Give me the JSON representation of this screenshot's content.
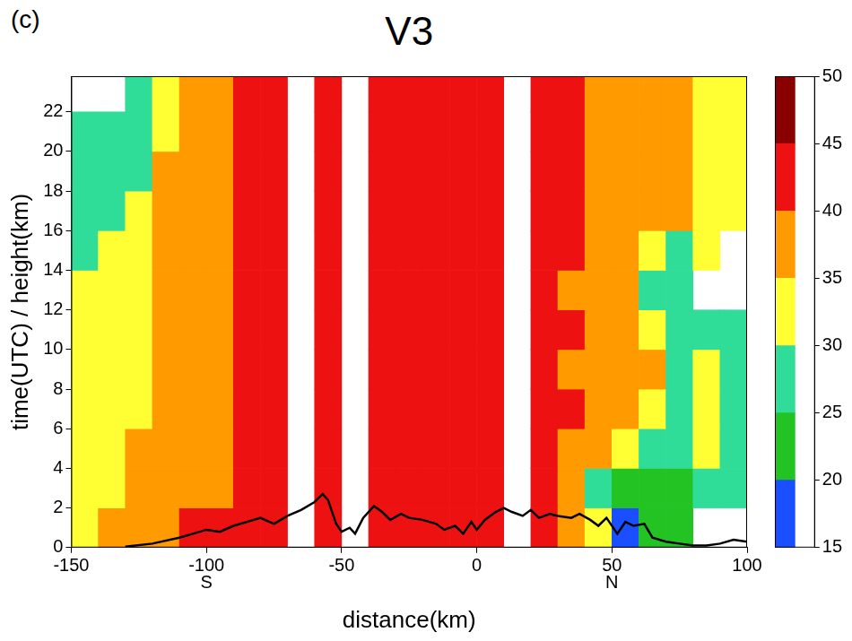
{
  "chart_data": {
    "type": "heatmap",
    "panel_label": "(c)",
    "title": "V3",
    "x_label": "distance(km)",
    "y_label": "time(UTC) / height(km)",
    "xlim": [
      -150,
      100
    ],
    "xticks": [
      -150,
      -100,
      -50,
      0,
      50,
      100
    ],
    "ylim": [
      0,
      23.8
    ],
    "yticks": [
      0,
      2,
      4,
      6,
      8,
      10,
      12,
      14,
      16,
      18,
      20,
      22
    ],
    "grid": false,
    "x_bins": [
      -150,
      -140,
      -130,
      -120,
      -110,
      -100,
      -90,
      -80,
      -70,
      -60,
      -50,
      -40,
      -30,
      -20,
      -10,
      0,
      10,
      20,
      30,
      40,
      50,
      60,
      70,
      80,
      90,
      100
    ],
    "y_bins": [
      0,
      2,
      4,
      6,
      8,
      10,
      12,
      14,
      16,
      18,
      20,
      22,
      24
    ],
    "cells": [
      [
        33,
        36,
        37,
        38,
        40,
        41,
        42,
        44,
        null,
        42,
        null,
        42,
        43,
        41,
        42,
        40,
        null,
        41,
        38,
        32,
        19,
        21,
        22,
        null,
        null
      ],
      [
        33,
        34,
        36,
        37,
        38,
        39,
        41,
        43,
        null,
        42,
        null,
        41,
        44,
        41,
        42,
        40,
        null,
        40,
        38,
        28,
        23,
        23,
        24,
        26,
        26
      ],
      [
        31,
        33,
        35,
        37,
        38,
        39,
        41,
        44,
        null,
        41,
        null,
        42,
        43,
        42,
        42,
        41,
        null,
        41,
        39,
        36,
        33,
        26,
        27,
        30,
        27
      ],
      [
        30,
        32,
        34,
        36,
        38,
        38,
        42,
        43,
        null,
        42,
        null,
        42,
        43,
        41,
        43,
        40,
        null,
        41,
        40,
        37,
        36,
        33,
        28,
        32,
        28
      ],
      [
        30,
        30,
        33,
        36,
        37,
        38,
        41,
        44,
        null,
        42,
        null,
        42,
        44,
        41,
        42,
        41,
        null,
        41,
        39,
        37,
        36,
        35,
        28,
        30,
        26
      ],
      [
        31,
        31,
        33,
        36,
        38,
        39,
        41,
        44,
        null,
        43,
        null,
        41,
        43,
        42,
        43,
        41,
        null,
        41,
        40,
        38,
        35,
        30,
        28,
        28,
        27
      ],
      [
        30,
        32,
        33,
        36,
        37,
        39,
        42,
        44,
        null,
        42,
        null,
        42,
        44,
        41,
        43,
        41,
        null,
        40,
        39,
        37,
        36,
        28,
        29,
        null,
        null
      ],
      [
        28,
        31,
        33,
        36,
        38,
        38,
        41,
        43,
        null,
        42,
        null,
        42,
        43,
        41,
        42,
        42,
        null,
        41,
        40,
        37,
        36,
        34,
        28,
        33,
        null
      ],
      [
        28,
        28,
        32,
        37,
        38,
        39,
        42,
        44,
        null,
        41,
        null,
        42,
        43,
        41,
        43,
        41,
        null,
        41,
        40,
        37,
        36,
        36,
        36,
        34,
        33
      ],
      [
        27,
        28,
        29,
        36,
        38,
        39,
        41,
        43,
        null,
        42,
        null,
        41,
        43,
        41,
        42,
        41,
        null,
        41,
        40,
        38,
        36,
        36,
        35,
        34,
        32
      ],
      [
        27,
        27,
        28,
        34,
        37,
        38,
        41,
        44,
        null,
        42,
        null,
        42,
        42,
        41,
        43,
        41,
        null,
        41,
        40,
        38,
        37,
        36,
        36,
        33,
        32
      ],
      [
        null,
        null,
        26,
        33,
        36,
        37,
        40,
        43,
        null,
        41,
        null,
        42,
        43,
        42,
        44,
        42,
        null,
        41,
        40,
        38,
        37,
        37,
        36,
        34,
        31
      ]
    ],
    "colorbar": {
      "range": [
        15,
        50
      ],
      "ticks": [
        15,
        20,
        25,
        30,
        35,
        40,
        45,
        50
      ],
      "colors": [
        "#1a4fff",
        "#22c322",
        "#2fdc98",
        "#ffff33",
        "#ff9a00",
        "#ee1111",
        "#880000"
      ]
    },
    "series": [
      {
        "type": "line",
        "color": "#000000",
        "x": [
          -130,
          -120,
          -110,
          -105,
          -100,
          -95,
          -90,
          -85,
          -80,
          -75,
          -70,
          -65,
          -60,
          -57,
          -55,
          -52,
          -50,
          -47,
          -45,
          -42,
          -38,
          -35,
          -32,
          -28,
          -25,
          -20,
          -15,
          -12,
          -8,
          -5,
          -2,
          0,
          3,
          7,
          10,
          13,
          17,
          20,
          23,
          27,
          30,
          35,
          38,
          42,
          45,
          48,
          52,
          55,
          58,
          62,
          65,
          70,
          75,
          80,
          85,
          90,
          95,
          100
        ],
        "values": [
          0.05,
          0.2,
          0.5,
          0.7,
          0.9,
          0.8,
          1.1,
          1.3,
          1.5,
          1.2,
          1.6,
          1.9,
          2.3,
          2.7,
          2.4,
          1.2,
          0.8,
          1.0,
          0.7,
          1.5,
          2.1,
          1.8,
          1.4,
          1.7,
          1.5,
          1.4,
          1.2,
          0.9,
          1.1,
          0.7,
          1.3,
          0.9,
          1.4,
          1.8,
          2.0,
          1.8,
          1.6,
          1.9,
          1.5,
          1.7,
          1.6,
          1.5,
          1.7,
          1.4,
          1.1,
          1.5,
          0.7,
          1.3,
          1.1,
          1.2,
          0.5,
          0.3,
          0.2,
          0.1,
          0.1,
          0.2,
          0.4,
          0.3
        ]
      }
    ],
    "annotations": [
      {
        "text": "S",
        "x": -100
      },
      {
        "text": "N",
        "x": 50
      }
    ]
  }
}
